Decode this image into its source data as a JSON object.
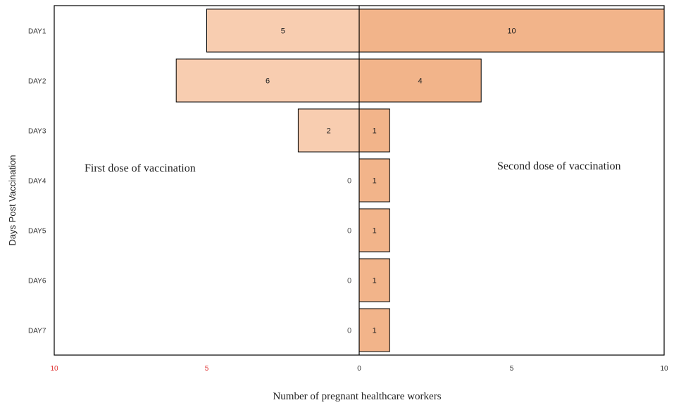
{
  "chart_data": {
    "type": "bar",
    "orientation": "horizontal",
    "layout": "butterfly",
    "categories": [
      "DAY1",
      "DAY2",
      "DAY3",
      "DAY4",
      "DAY5",
      "DAY6",
      "DAY7"
    ],
    "series": [
      {
        "name": "First dose of vaccination",
        "side": "left",
        "color": "#f8cdb0",
        "values": [
          5,
          6,
          2,
          0,
          0,
          0,
          0
        ]
      },
      {
        "name": "Second dose of vaccination",
        "side": "right",
        "color": "#f2b48a",
        "values": [
          10,
          4,
          1,
          1,
          1,
          1,
          1
        ]
      }
    ],
    "xlabel": "Number of pregnant healthcare workers",
    "ylabel": "Days Post Vaccination",
    "xlim": [
      -10,
      10
    ],
    "x_ticks": [
      {
        "value": -10,
        "label": "10"
      },
      {
        "value": -5,
        "label": "5"
      },
      {
        "value": 0,
        "label": "0"
      },
      {
        "value": 5,
        "label": "5"
      },
      {
        "value": 10,
        "label": "10"
      }
    ],
    "tick_colors": {
      "left": "#e03030",
      "right": "#333333"
    },
    "grid": false
  }
}
